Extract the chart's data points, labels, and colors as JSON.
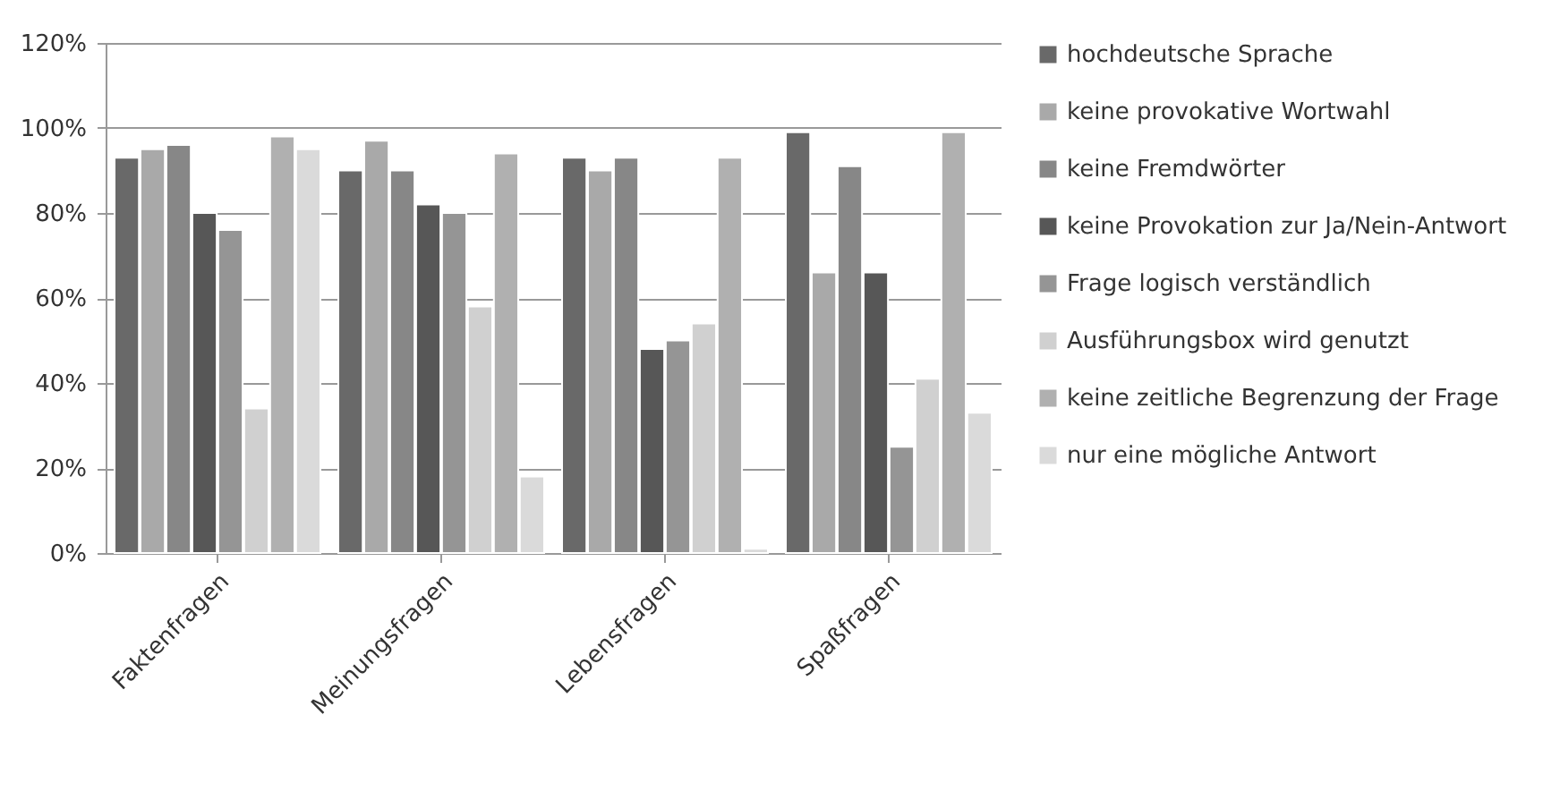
{
  "chart_data": {
    "type": "bar",
    "categories": [
      "Faktenfragen",
      "Meinungsfragen",
      "Lebensfragen",
      "Spaßfragen"
    ],
    "series": [
      {
        "name": "hochdeutsche Sprache",
        "color": "#696969",
        "values": [
          93,
          90,
          93,
          99
        ]
      },
      {
        "name": "keine provokative Wortwahl",
        "color": "#a9a9a9",
        "values": [
          95,
          97,
          90,
          66
        ]
      },
      {
        "name": "keine Fremdwörter",
        "color": "#878787",
        "values": [
          96,
          90,
          93,
          91
        ]
      },
      {
        "name": "keine Provokation zur Ja/Nein-Antwort",
        "color": "#575757",
        "values": [
          80,
          82,
          48,
          66
        ]
      },
      {
        "name": "Frage logisch verständlich",
        "color": "#959595",
        "values": [
          76,
          80,
          50,
          25
        ]
      },
      {
        "name": "Ausführungsbox wird genutzt",
        "color": "#d0d0d0",
        "values": [
          34,
          58,
          54,
          41
        ]
      },
      {
        "name": "keine zeitliche Begrenzung der Frage",
        "color": "#b0b0b0",
        "values": [
          98,
          94,
          93,
          99
        ]
      },
      {
        "name": "nur eine mögliche Antwort",
        "color": "#dadada",
        "values": [
          95,
          18,
          1,
          33
        ]
      }
    ],
    "ylim": [
      0,
      120
    ],
    "yticks": [
      {
        "value": 0,
        "label": "0%"
      },
      {
        "value": 20,
        "label": "20%"
      },
      {
        "value": 40,
        "label": "40%"
      },
      {
        "value": 60,
        "label": "60%"
      },
      {
        "value": 80,
        "label": "80%"
      },
      {
        "value": 100,
        "label": "100%"
      },
      {
        "value": 120,
        "label": "120%"
      }
    ],
    "grid": "y",
    "legend": "right"
  }
}
